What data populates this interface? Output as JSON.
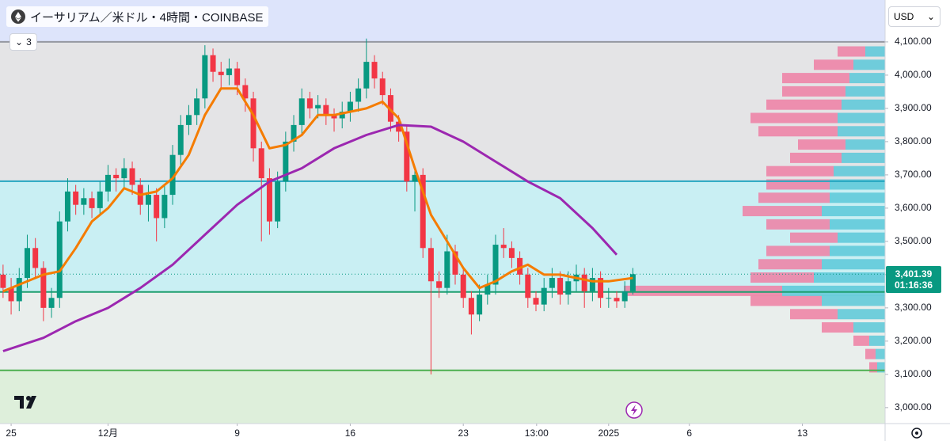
{
  "header": {
    "title": "イーサリアム／米ドル・4時間・COINBASE",
    "indicator_count": "3",
    "currency": "USD"
  },
  "chart_data": {
    "type": "candlestick",
    "x": [
      -0.5,
      0,
      0.5,
      1,
      1.5,
      2,
      2.5,
      3,
      3.5,
      4,
      4.5,
      5,
      5.5,
      6,
      6.5,
      7,
      7.5,
      8,
      8.5,
      9,
      9.5,
      10,
      10.5,
      11,
      11.5,
      12,
      12.5,
      13,
      13.5,
      14,
      14.5,
      15,
      15.5,
      16,
      16.5,
      17,
      17.5,
      18,
      18.5,
      19,
      19.5,
      20,
      20.5,
      21,
      21.5,
      22,
      22.5,
      23,
      23.5,
      24,
      24.5,
      25,
      25.5,
      26,
      26.5,
      27,
      27.5,
      28,
      28.5,
      29,
      29.5,
      30,
      30.5,
      31,
      31.5,
      32,
      32.5,
      33,
      33.5,
      34,
      34.5,
      35,
      35.5,
      36,
      36.5,
      37,
      37.5,
      38,
      38.5
    ],
    "open": [
      3400,
      3360,
      3320,
      3390,
      3480,
      3420,
      3300,
      3330,
      3560,
      3650,
      3610,
      3630,
      3600,
      3650,
      3700,
      3690,
      3720,
      3670,
      3610,
      3640,
      3570,
      3640,
      3760,
      3850,
      3880,
      3930,
      4060,
      4010,
      4000,
      4020,
      3970,
      3930,
      3780,
      3690,
      3560,
      3680,
      3800,
      3850,
      3930,
      3900,
      3910,
      3880,
      3870,
      3890,
      3920,
      3960,
      4040,
      3990,
      3940,
      3860,
      3830,
      3680,
      3700,
      3480,
      3380,
      3360,
      3470,
      3400,
      3330,
      3280,
      3340,
      3370,
      3490,
      3480,
      3450,
      3400,
      3330,
      3310,
      3360,
      3390,
      3340,
      3380,
      3400,
      3350,
      3390,
      3330,
      3330,
      3320,
      3350
    ],
    "high": [
      3430,
      3390,
      3420,
      3520,
      3510,
      3440,
      3360,
      3590,
      3690,
      3670,
      3660,
      3650,
      3680,
      3730,
      3720,
      3750,
      3740,
      3690,
      3670,
      3660,
      3670,
      3790,
      3880,
      3910,
      3960,
      4090,
      4080,
      4040,
      4050,
      4040,
      3990,
      3950,
      3800,
      3720,
      3710,
      3830,
      3880,
      3960,
      3950,
      3940,
      3930,
      3900,
      3920,
      3950,
      3990,
      4110,
      4060,
      4010,
      3960,
      3880,
      3850,
      3720,
      3720,
      3510,
      3410,
      3520,
      3490,
      3420,
      3350,
      3370,
      3400,
      3520,
      3540,
      3500,
      3470,
      3420,
      3350,
      3390,
      3420,
      3410,
      3410,
      3430,
      3420,
      3420,
      3410,
      3360,
      3350,
      3380,
      3420
    ],
    "low": [
      3330,
      3280,
      3290,
      3360,
      3390,
      3260,
      3270,
      3300,
      3530,
      3580,
      3580,
      3570,
      3580,
      3620,
      3650,
      3660,
      3640,
      3580,
      3560,
      3500,
      3540,
      3610,
      3730,
      3820,
      3850,
      3900,
      3980,
      3960,
      3970,
      3940,
      3890,
      3740,
      3500,
      3520,
      3540,
      3650,
      3770,
      3820,
      3870,
      3870,
      3850,
      3830,
      3840,
      3860,
      3890,
      3930,
      3960,
      3910,
      3830,
      3800,
      3650,
      3590,
      3450,
      3100,
      3330,
      3340,
      3370,
      3300,
      3220,
      3260,
      3310,
      3340,
      3450,
      3420,
      3370,
      3300,
      3290,
      3290,
      3330,
      3310,
      3310,
      3350,
      3300,
      3320,
      3300,
      3300,
      3300,
      3300,
      3340
    ],
    "close": [
      3360,
      3320,
      3390,
      3480,
      3420,
      3300,
      3330,
      3560,
      3650,
      3610,
      3630,
      3600,
      3650,
      3700,
      3690,
      3720,
      3670,
      3610,
      3640,
      3570,
      3640,
      3760,
      3850,
      3880,
      3930,
      4060,
      4010,
      4000,
      4020,
      3970,
      3930,
      3780,
      3690,
      3560,
      3680,
      3800,
      3850,
      3930,
      3900,
      3910,
      3880,
      3870,
      3890,
      3920,
      3960,
      4040,
      3990,
      3940,
      3860,
      3830,
      3680,
      3700,
      3480,
      3380,
      3360,
      3470,
      3400,
      3330,
      3280,
      3340,
      3370,
      3490,
      3480,
      3450,
      3400,
      3330,
      3310,
      3360,
      3390,
      3340,
      3380,
      3400,
      3350,
      3390,
      3330,
      3330,
      3320,
      3350,
      3401.39
    ],
    "up_color": "#089981",
    "down_color": "#f23645",
    "moving_averages": [
      {
        "color": "#f57c00",
        "x": [
          -0.5,
          1,
          2,
          3,
          4,
          5,
          6,
          7,
          8,
          9,
          10,
          11,
          12,
          13,
          14,
          15,
          16,
          17,
          18,
          19,
          20,
          21,
          22,
          23,
          24,
          25,
          26,
          27,
          28,
          29,
          30,
          31,
          32,
          33,
          34,
          35,
          36,
          37,
          38.5
        ],
        "values": [
          3350,
          3380,
          3400,
          3410,
          3480,
          3560,
          3600,
          3660,
          3640,
          3650,
          3690,
          3760,
          3880,
          3960,
          3960,
          3880,
          3780,
          3790,
          3820,
          3880,
          3880,
          3890,
          3900,
          3920,
          3870,
          3720,
          3580,
          3500,
          3420,
          3360,
          3380,
          3410,
          3430,
          3400,
          3400,
          3390,
          3380,
          3380,
          3390
        ]
      },
      {
        "color": "#9c27b0",
        "x": [
          -0.5,
          2,
          4,
          6,
          8,
          10,
          12,
          14,
          16,
          18,
          20,
          22,
          24,
          26,
          28,
          30,
          32,
          34,
          36,
          37.5
        ],
        "values": [
          3170,
          3210,
          3260,
          3300,
          3360,
          3430,
          3520,
          3610,
          3680,
          3720,
          3780,
          3820,
          3850,
          3845,
          3800,
          3740,
          3680,
          3630,
          3540,
          3460
        ]
      }
    ],
    "zones": [
      {
        "from": 4100,
        "to": 4226,
        "color": "#dde4fb"
      },
      {
        "from": 3681,
        "to": 4100,
        "color": "#e4e4e6"
      },
      {
        "from": 3348,
        "to": 3681,
        "color": "#c9eff3"
      },
      {
        "from": 3112,
        "to": 3348,
        "color": "#e9eeec"
      },
      {
        "from": 2952,
        "to": 3112,
        "color": "#deefdb"
      }
    ],
    "hlines": [
      {
        "value": 4100,
        "color": "#9598a1"
      },
      {
        "value": 3681,
        "color": "#26a6c0"
      },
      {
        "value": 3348,
        "color": "#1e9e6e"
      },
      {
        "value": 3112,
        "color": "#4caf50"
      }
    ],
    "volume_profile": {
      "prices": [
        3120,
        3160,
        3200,
        3240,
        3280,
        3320,
        3350,
        3390,
        3430,
        3470,
        3510,
        3550,
        3590,
        3630,
        3670,
        3710,
        3750,
        3790,
        3830,
        3870,
        3910,
        3950,
        3990,
        4030,
        4070
      ],
      "up": [
        10,
        12,
        20,
        40,
        60,
        80,
        130,
        90,
        80,
        70,
        60,
        70,
        80,
        70,
        70,
        65,
        55,
        50,
        60,
        60,
        55,
        50,
        45,
        40,
        25
      ],
      "down": [
        10,
        13,
        20,
        40,
        60,
        90,
        200,
        80,
        80,
        80,
        60,
        80,
        100,
        90,
        80,
        85,
        65,
        60,
        100,
        110,
        95,
        80,
        85,
        50,
        35
      ],
      "up_color": "#5bc8d8",
      "down_color": "#ef7fa3",
      "xlim": [
        0,
        330
      ]
    },
    "last_price": {
      "value": 3401.39,
      "label": "3,401.39",
      "countdown": "01:16:36"
    },
    "xlim": [
      -0.69,
      54.12
    ],
    "ylim": [
      2952,
      4226
    ],
    "xticks": [
      {
        "value": 0,
        "label": "25"
      },
      {
        "value": 6,
        "label": "12月"
      },
      {
        "value": 14,
        "label": "9"
      },
      {
        "value": 21,
        "label": "16"
      },
      {
        "value": 28,
        "label": "23"
      },
      {
        "value": 32.54,
        "label": "13:00"
      },
      {
        "value": 37,
        "label": "2025"
      },
      {
        "value": 42,
        "label": "6"
      },
      {
        "value": 49,
        "label": "13"
      }
    ],
    "yticks": [
      {
        "value": 4100,
        "label": "4,100.00"
      },
      {
        "value": 4000,
        "label": "4,000.00"
      },
      {
        "value": 3900,
        "label": "3,900.00"
      },
      {
        "value": 3800,
        "label": "3,800.00"
      },
      {
        "value": 3700,
        "label": "3,700.00"
      },
      {
        "value": 3600,
        "label": "3,600.00"
      },
      {
        "value": 3500,
        "label": "3,500.00"
      },
      {
        "value": 3400,
        "label": "3,400.00"
      },
      {
        "value": 3300,
        "label": "3,300.00"
      },
      {
        "value": 3200,
        "label": "3,200.00"
      },
      {
        "value": 3100,
        "label": "3,100.00"
      },
      {
        "value": 3000,
        "label": "3,000.00"
      }
    ]
  }
}
